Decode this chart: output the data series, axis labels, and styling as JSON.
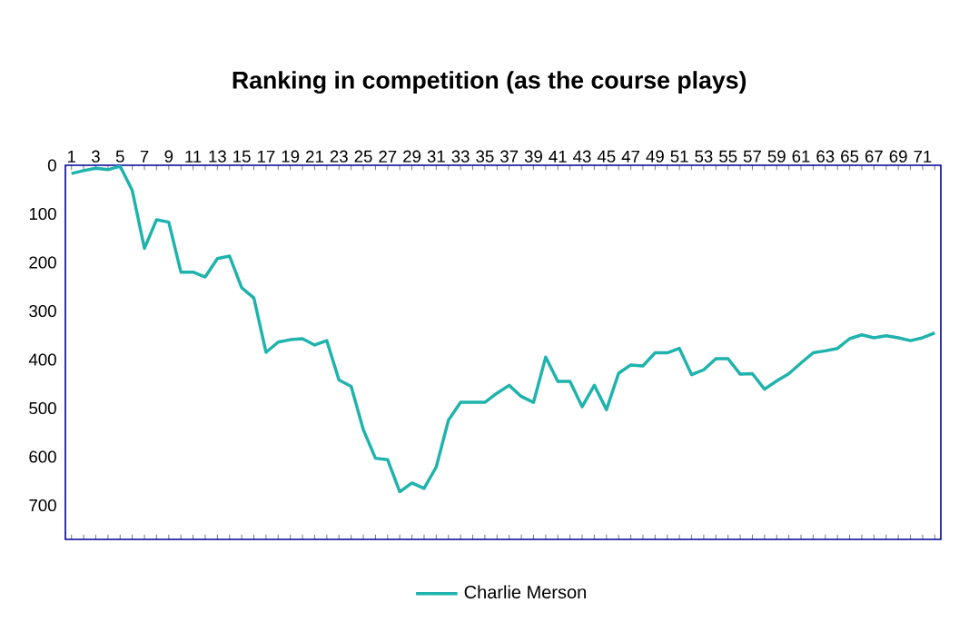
{
  "chart_data": {
    "type": "line",
    "title": "Ranking in competition (as the course plays)",
    "categories": [
      "1",
      null,
      "3",
      null,
      "5",
      null,
      "7",
      null,
      "9",
      null,
      "11",
      null,
      "13",
      null,
      "15",
      null,
      "17",
      null,
      "19",
      null,
      "21",
      null,
      "23",
      null,
      "25",
      null,
      "27",
      null,
      "29",
      null,
      "31",
      null,
      "33",
      null,
      "35",
      null,
      "37",
      null,
      "39",
      null,
      "41",
      null,
      "43",
      null,
      "45",
      null,
      "47",
      null,
      "49",
      null,
      "51",
      null,
      "53",
      null,
      "55",
      null,
      "57",
      null,
      "59",
      null,
      "61",
      null,
      "63",
      null,
      "65",
      null,
      "67",
      null,
      "69",
      null,
      "71",
      null
    ],
    "series": [
      {
        "name": "Charlie Merson",
        "color": "#1fb3ad",
        "values": [
          17,
          11,
          6,
          9,
          2,
          52,
          171,
          112,
          117,
          220,
          220,
          230,
          192,
          187,
          252,
          273,
          385,
          364,
          359,
          357,
          370,
          361,
          442,
          455,
          544,
          603,
          606,
          672,
          654,
          665,
          621,
          525,
          488,
          488,
          488,
          469,
          453,
          476,
          488,
          395,
          445,
          445,
          497,
          453,
          503,
          428,
          411,
          413,
          386,
          386,
          377,
          431,
          421,
          398,
          398,
          430,
          429,
          461,
          444,
          429,
          407,
          386,
          382,
          377,
          357,
          349,
          355,
          351,
          355,
          361,
          355,
          345
        ]
      }
    ],
    "ylim": [
      770,
      0
    ],
    "yticks": [
      0,
      100,
      200,
      300,
      400,
      500,
      600,
      700
    ],
    "grid": false,
    "legend": "bottom",
    "marker": "none",
    "line_style": "solid"
  }
}
